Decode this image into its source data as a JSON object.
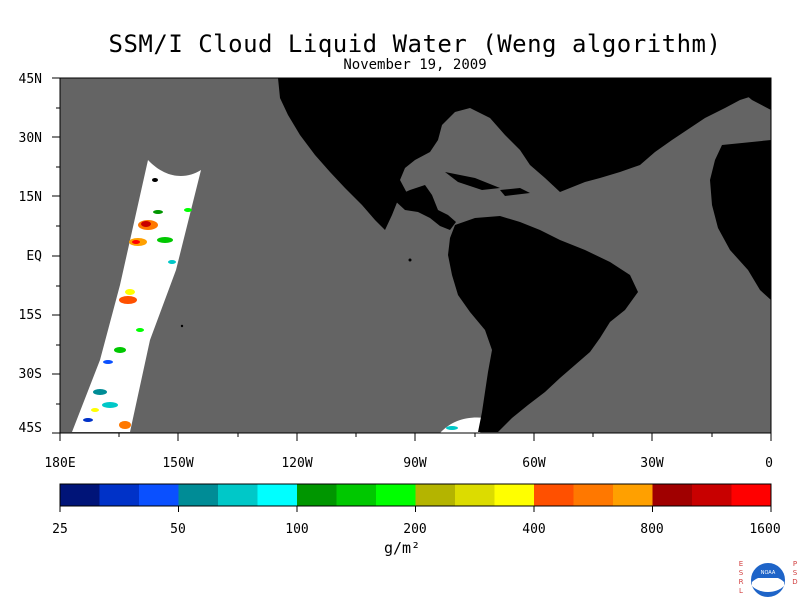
{
  "title": "SSM/I Cloud Liquid Water (Weng algorithm)",
  "subtitle": "November 19, 2009",
  "map": {
    "ocean_color": "#646464",
    "land_color": "#000000",
    "no_data_color": "#ffffff",
    "lat_range": [
      -45,
      45
    ],
    "lon_range": [
      -180,
      0
    ],
    "lat_labels": [
      "45N",
      "30N",
      "15N",
      "EQ",
      "15S",
      "30S",
      "45S"
    ],
    "lon_labels": [
      "180E",
      "150W",
      "120W",
      "90W",
      "60W",
      "30W",
      "0"
    ]
  },
  "colorbar": {
    "colors": [
      "#001478",
      "#0032c8",
      "#0a50ff",
      "#008c96",
      "#00c8c8",
      "#00ffff",
      "#009600",
      "#00c800",
      "#00ff00",
      "#b4b400",
      "#dcdc00",
      "#ffff00",
      "#ff5000",
      "#ff7800",
      "#ffa000",
      "#a00000",
      "#c80000",
      "#ff0000"
    ],
    "tick_labels": [
      "25",
      "50",
      "100",
      "200",
      "400",
      "800",
      "1600"
    ],
    "units": "g/m²"
  },
  "logo": {
    "left_letters": [
      "E",
      "S",
      "R",
      "L"
    ],
    "right_letters": [
      "P",
      "S",
      "D"
    ],
    "center_text": "NOAA"
  }
}
